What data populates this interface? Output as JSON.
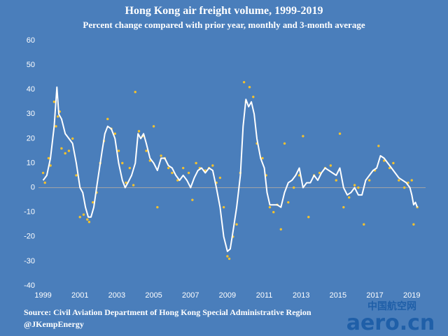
{
  "chart_data": {
    "type": "line",
    "title": "Hong Kong air freight volume, 1999-2019",
    "subtitle": "Percent change compared with prior year, monthly and 3-month average",
    "source": "Source: Civil Aviation Department of Hong Kong Special Administrative Region",
    "credit": "@JKempEnergy",
    "watermark": [
      "中国航空网",
      "aero.cn"
    ],
    "background": "#4a7ebb",
    "xlim": [
      1998.75,
      2019.75
    ],
    "xticks": [
      1999,
      2001,
      2003,
      2005,
      2007,
      2009,
      2011,
      2013,
      2015,
      2017,
      2019
    ],
    "ylim": [
      -40,
      60
    ],
    "yticks": [
      -40,
      -30,
      -20,
      -10,
      0,
      10,
      20,
      30,
      40,
      50,
      60
    ],
    "zero_line": true,
    "series": [
      {
        "mark": "dot",
        "color": "#f2c12e",
        "x": [
          1999.0,
          1999.1,
          1999.3,
          1999.4,
          1999.6,
          1999.7,
          1999.8,
          1999.9,
          2000.0,
          2000.2,
          2000.4,
          2000.6,
          2000.8,
          2001.0,
          2001.2,
          2001.4,
          2001.5,
          2001.7,
          2001.9,
          2002.1,
          2002.3,
          2002.5,
          2002.7,
          2002.9,
          2003.1,
          2003.3,
          2003.5,
          2003.7,
          2003.9,
          2004.0,
          2004.2,
          2004.4,
          2004.6,
          2004.8,
          2005.0,
          2005.2,
          2005.4,
          2005.6,
          2005.8,
          2006.0,
          2006.3,
          2006.6,
          2006.9,
          2007.1,
          2007.3,
          2007.5,
          2007.8,
          2008.0,
          2008.2,
          2008.4,
          2008.6,
          2008.8,
          2009.0,
          2009.1,
          2009.3,
          2009.5,
          2009.7,
          2009.9,
          2010.0,
          2010.2,
          2010.4,
          2010.6,
          2010.9,
          2011.1,
          2011.3,
          2011.5,
          2011.7,
          2011.9,
          2012.1,
          2012.3,
          2012.6,
          2012.9,
          2013.1,
          2013.4,
          2013.7,
          2014.0,
          2014.3,
          2014.6,
          2014.9,
          2015.1,
          2015.3,
          2015.6,
          2015.9,
          2016.1,
          2016.4,
          2016.7,
          2017.0,
          2017.2,
          2017.5,
          2017.8,
          2018.0,
          2018.3,
          2018.6,
          2018.8,
          2019.0,
          2019.1,
          2019.3
        ],
        "values": [
          6,
          2,
          12,
          9,
          35,
          25,
          29,
          31,
          16,
          14,
          15,
          20,
          5,
          -12,
          -11,
          -13,
          -14,
          -6,
          -2,
          10,
          19,
          28,
          24,
          22,
          15,
          10,
          2,
          8,
          1,
          39,
          23,
          21,
          15,
          11,
          25,
          -8,
          13,
          12,
          8,
          6,
          3,
          8,
          6,
          -5,
          10,
          8,
          7,
          8,
          9,
          2,
          4,
          -8,
          -28,
          -29,
          -20,
          -15,
          6,
          43,
          35,
          41,
          37,
          18,
          12,
          5,
          -8,
          -10,
          -7,
          -17,
          18,
          -6,
          0,
          5,
          21,
          -12,
          5,
          6,
          8,
          9,
          3,
          22,
          -8,
          -4,
          1,
          0,
          -15,
          3,
          7,
          17,
          11,
          8,
          10,
          3,
          0,
          2,
          3,
          -15,
          -8
        ]
      },
      {
        "mark": "line",
        "color": "#ffffff",
        "x": [
          1999.0,
          1999.2,
          1999.4,
          1999.6,
          1999.75,
          1999.85,
          2000.0,
          2000.2,
          2000.4,
          2000.6,
          2000.8,
          2001.0,
          2001.15,
          2001.3,
          2001.45,
          2001.6,
          2001.75,
          2001.9,
          2002.0,
          2002.2,
          2002.35,
          2002.5,
          2002.7,
          2002.9,
          2003.1,
          2003.3,
          2003.45,
          2003.6,
          2003.8,
          2004.0,
          2004.15,
          2004.3,
          2004.45,
          2004.6,
          2004.8,
          2005.0,
          2005.2,
          2005.4,
          2005.6,
          2005.8,
          2006.0,
          2006.2,
          2006.4,
          2006.6,
          2006.8,
          2007.0,
          2007.2,
          2007.4,
          2007.6,
          2007.8,
          2008.0,
          2008.2,
          2008.4,
          2008.6,
          2008.8,
          2009.0,
          2009.15,
          2009.3,
          2009.5,
          2009.7,
          2009.85,
          2010.0,
          2010.15,
          2010.3,
          2010.45,
          2010.6,
          2010.8,
          2011.0,
          2011.15,
          2011.3,
          2011.5,
          2011.7,
          2011.9,
          2012.1,
          2012.3,
          2012.5,
          2012.7,
          2012.9,
          2013.1,
          2013.3,
          2013.5,
          2013.7,
          2013.9,
          2014.1,
          2014.3,
          2014.5,
          2014.7,
          2014.9,
          2015.1,
          2015.3,
          2015.5,
          2015.7,
          2015.9,
          2016.1,
          2016.3,
          2016.5,
          2016.7,
          2016.9,
          2017.1,
          2017.3,
          2017.5,
          2017.7,
          2017.9,
          2018.1,
          2018.3,
          2018.5,
          2018.7,
          2018.9,
          2019.0,
          2019.1,
          2019.2,
          2019.3
        ],
        "values": [
          3,
          5,
          12,
          25,
          41,
          30,
          28,
          22,
          20,
          18,
          10,
          0,
          -2,
          -8,
          -12,
          -12,
          -8,
          0,
          5,
          15,
          22,
          25,
          24,
          20,
          10,
          3,
          0,
          2,
          5,
          10,
          22,
          20,
          22,
          18,
          12,
          10,
          7,
          12,
          12,
          9,
          8,
          5,
          3,
          5,
          3,
          0,
          4,
          7,
          8,
          6,
          8,
          7,
          0,
          -8,
          -20,
          -26,
          -25,
          -18,
          -8,
          5,
          25,
          36,
          33,
          35,
          30,
          20,
          12,
          8,
          -2,
          -7,
          -7,
          -7,
          -8,
          -2,
          2,
          3,
          5,
          8,
          0,
          2,
          2,
          5,
          3,
          6,
          8,
          7,
          6,
          5,
          8,
          0,
          -3,
          -2,
          0,
          -3,
          -3,
          3,
          5,
          7,
          8,
          13,
          12,
          10,
          8,
          6,
          4,
          3,
          2,
          0,
          -3,
          -7,
          -6,
          -8
        ]
      }
    ]
  }
}
